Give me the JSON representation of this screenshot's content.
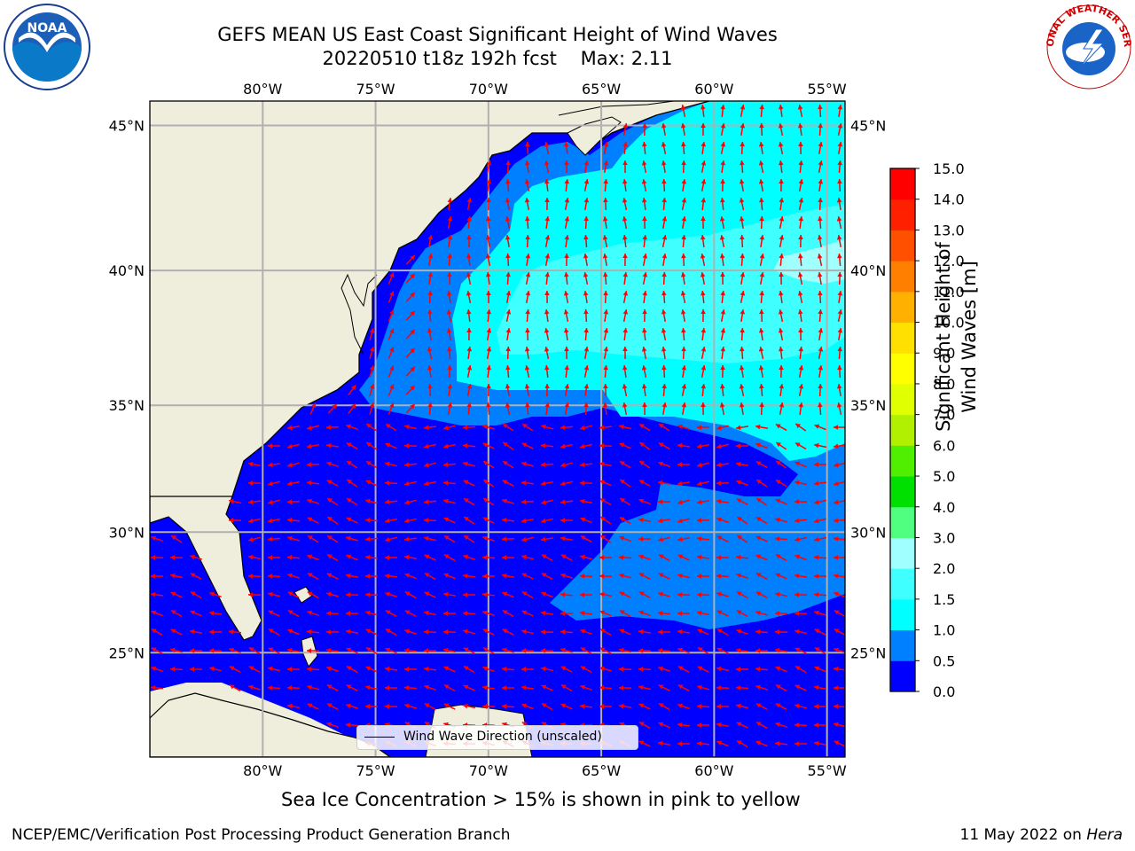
{
  "title": {
    "line1": "GEFS MEAN US East Coast Significant Height of Wind Waves",
    "line2": "20220510 t18z 192h fcst    Max: 2.11"
  },
  "logos": {
    "left": {
      "name": "NOAA",
      "ring_text": "NATIONAL OCEANIC AND ATMOSPHERIC ADMINISTRATION · U.S. DEPARTMENT OF COMMERCE"
    },
    "right": {
      "name": "NATIONAL WEATHER SERVICE"
    }
  },
  "map": {
    "extent": {
      "lon": [
        -85,
        -54.2
      ],
      "lat": [
        20.5,
        45.8
      ]
    },
    "lon_ticks": [
      "80°W",
      "75°W",
      "70°W",
      "65°W",
      "60°W",
      "55°W"
    ],
    "lon_values": [
      -80,
      -75,
      -70,
      -65,
      -60,
      -55
    ],
    "lat_ticks": [
      "45°N",
      "40°N",
      "35°N",
      "30°N",
      "25°N"
    ],
    "lat_values": [
      45,
      40,
      35,
      30,
      25
    ],
    "colors": {
      "land": "#efeddb",
      "grid": "#b0b0b0",
      "arrow": "#ff0000",
      "coast": "#000000"
    },
    "legend": "Wind Wave Direction (unscaled)"
  },
  "colorbar": {
    "label": "Significant Height of Wind Waves [m]",
    "tick_labels": [
      "0.0",
      "0.5",
      "1.0",
      "1.5",
      "2.0",
      "3.0",
      "4.0",
      "5.0",
      "6.0",
      "7.0",
      "8.0",
      "9.0",
      "10.0",
      "11.0",
      "12.0",
      "13.0",
      "14.0",
      "15.0"
    ],
    "colors": [
      "#0000ff",
      "#0080ff",
      "#00ffff",
      "#40ffff",
      "#a0ffff",
      "#50ff80",
      "#00e000",
      "#50ee00",
      "#b0f000",
      "#e0ff00",
      "#ffff00",
      "#ffe000",
      "#ffb000",
      "#ff8000",
      "#ff5000",
      "#ff2000",
      "#ff0000"
    ]
  },
  "ice_note": "Sea Ice Concentration > 15% is shown in pink to yellow",
  "footer": {
    "credit": "NCEP/EMC/Verification Post Processing Product Generation Branch",
    "date": "11 May 2022 on ",
    "machine": "Hera"
  }
}
